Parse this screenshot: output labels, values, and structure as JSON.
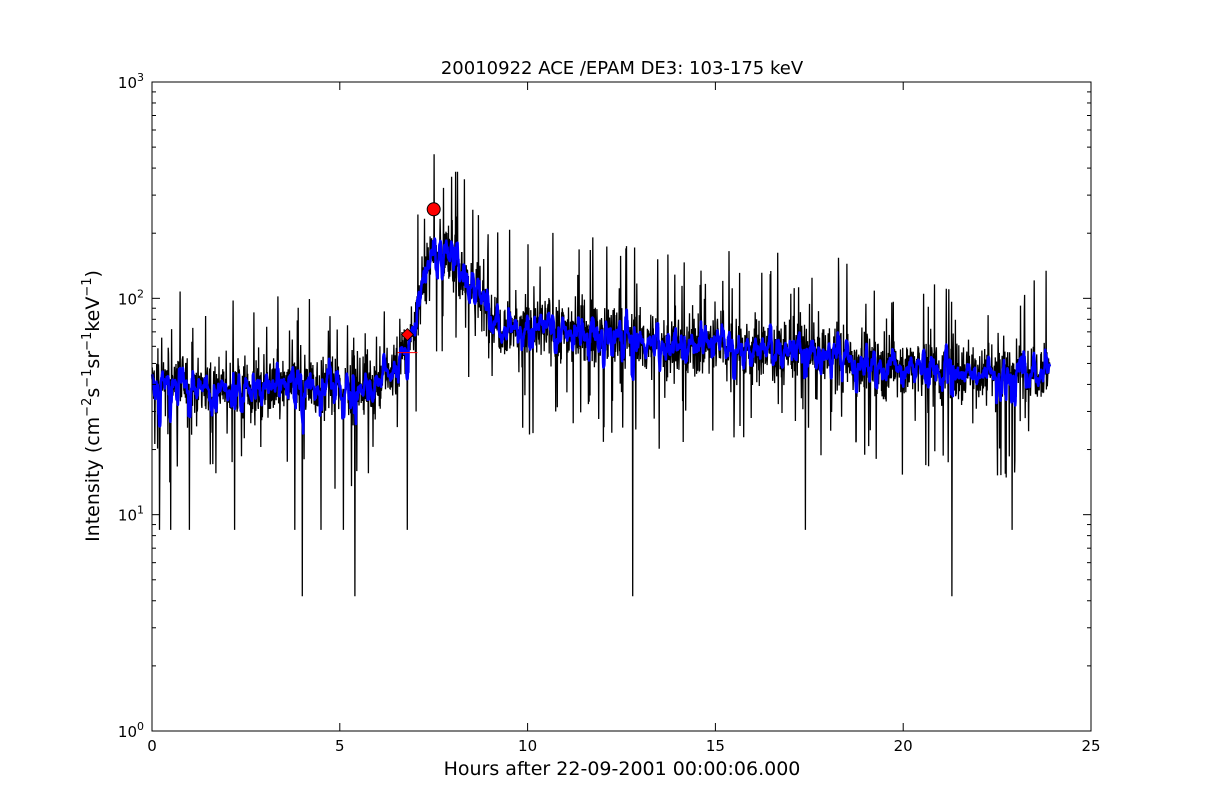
{
  "chart_data": {
    "type": "line",
    "title": "20010922 ACE /EPAM DE3: 103-175 keV",
    "xlabel": "Hours after 22-09-2001 00:00:06.000",
    "ylabel": {
      "parts": [
        "Intensity (cm",
        "−2",
        "s",
        "−1",
        "sr",
        "−1",
        "keV",
        "−1",
        ")"
      ]
    },
    "xlim": [
      0,
      25
    ],
    "ylim": [
      1,
      1000
    ],
    "yscale": "log",
    "grid": false,
    "x_ticks": [
      "0",
      "5",
      "10",
      "15",
      "20",
      "25"
    ],
    "y_ticks": [
      {
        "base": "10",
        "exp": "0"
      },
      {
        "base": "10",
        "exp": "1"
      },
      {
        "base": "10",
        "exp": "2"
      },
      {
        "base": "10",
        "exp": "3"
      }
    ],
    "series": [
      {
        "style": "raw",
        "color": "#000000",
        "x_start": 0.0,
        "x_end": 23.9,
        "cadence_hours": 0.0083,
        "envelope": [
          [
            0.0,
            40
          ],
          [
            1.0,
            40
          ],
          [
            2.0,
            38
          ],
          [
            3.0,
            38
          ],
          [
            4.0,
            40
          ],
          [
            5.0,
            39
          ],
          [
            6.0,
            40
          ],
          [
            6.5,
            48
          ],
          [
            6.8,
            60
          ],
          [
            7.1,
            90
          ],
          [
            7.3,
            130
          ],
          [
            7.5,
            180
          ],
          [
            7.8,
            160
          ],
          [
            8.3,
            130
          ],
          [
            8.8,
            95
          ],
          [
            9.3,
            75
          ],
          [
            10.0,
            72
          ],
          [
            11.0,
            72
          ],
          [
            12.0,
            68
          ],
          [
            13.0,
            62
          ],
          [
            14.0,
            60
          ],
          [
            15.0,
            62
          ],
          [
            16.0,
            58
          ],
          [
            17.0,
            57
          ],
          [
            18.0,
            55
          ],
          [
            19.0,
            50
          ],
          [
            20.0,
            48
          ],
          [
            21.0,
            47
          ],
          [
            22.0,
            46
          ],
          [
            23.0,
            46
          ],
          [
            23.9,
            48
          ]
        ],
        "spikes_low": [
          [
            0.2,
            8.5
          ],
          [
            0.5,
            8.5
          ],
          [
            1.0,
            8.5
          ],
          [
            2.2,
            8.5
          ],
          [
            3.8,
            8.5
          ],
          [
            4.0,
            4.2
          ],
          [
            4.5,
            8.5
          ],
          [
            5.1,
            8.5
          ],
          [
            5.4,
            4.2
          ],
          [
            6.8,
            8.5
          ],
          [
            12.8,
            4.2
          ],
          [
            17.4,
            8.5
          ],
          [
            21.3,
            4.2
          ],
          [
            22.9,
            8.5
          ]
        ]
      },
      {
        "style": "smoothed",
        "color": "#0000ff",
        "x_start": 0.0,
        "x_end": 23.9
      }
    ],
    "markers": [
      {
        "shape": "circle",
        "x": 7.5,
        "y": 258,
        "color": "#ff0000"
      },
      {
        "shape": "diamond",
        "x": 6.8,
        "y": 68,
        "color": "#ff0000"
      }
    ]
  }
}
